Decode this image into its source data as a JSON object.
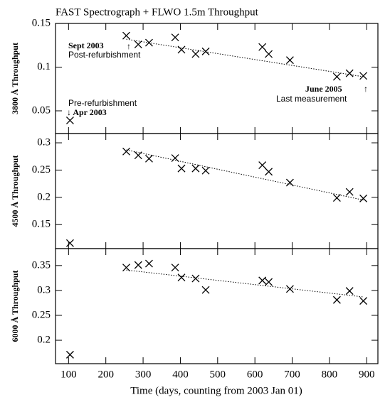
{
  "chart_data": [
    {
      "type": "scatter",
      "title": "FAST Spectrograph + FLWO 1.5m Throughput",
      "ylabel": "3800 Å Throughput",
      "color": "#000000",
      "x": [
        104,
        255,
        287,
        316,
        386,
        403,
        441,
        468,
        620,
        637,
        694,
        820,
        854,
        891
      ],
      "values": [
        0.039,
        0.136,
        0.126,
        0.128,
        0.134,
        0.12,
        0.115,
        0.118,
        0.123,
        0.115,
        0.108,
        0.089,
        0.093,
        0.09
      ],
      "trend": {
        "x": [
          255,
          891
        ],
        "values": [
          0.132,
          0.089
        ]
      },
      "annotations": [
        "Sept 2003",
        "↑",
        "Post-refurbishment",
        "Pre-refurbishment",
        "↓ Apr 2003",
        "June 2005",
        "↑",
        "Last measurement"
      ],
      "xlim": [
        65,
        930
      ],
      "ylim": [
        0.024,
        0.15
      ],
      "yticks": [
        0.05,
        0.1,
        0.15
      ]
    },
    {
      "type": "scatter",
      "ylabel": "4500 Å Throughput",
      "color": "#000000",
      "x": [
        104,
        255,
        287,
        316,
        386,
        403,
        441,
        468,
        620,
        637,
        694,
        820,
        854,
        891
      ],
      "values": [
        0.116,
        0.284,
        0.277,
        0.271,
        0.272,
        0.253,
        0.253,
        0.249,
        0.259,
        0.247,
        0.227,
        0.199,
        0.21,
        0.198
      ],
      "trend": {
        "x": [
          255,
          891
        ],
        "values": [
          0.287,
          0.195
        ]
      },
      "xlim": [
        65,
        930
      ],
      "ylim": [
        0.106,
        0.317
      ],
      "yticks": [
        0.15,
        0.2,
        0.25,
        0.3
      ]
    },
    {
      "type": "scatter",
      "ylabel": "6000 Å Throughput",
      "xlabel": "Time (days, counting from 2003 Jan 01)",
      "color": "#000000",
      "x": [
        104,
        255,
        287,
        316,
        386,
        403,
        441,
        468,
        620,
        637,
        694,
        820,
        854,
        891
      ],
      "values": [
        0.171,
        0.346,
        0.351,
        0.354,
        0.346,
        0.326,
        0.324,
        0.301,
        0.32,
        0.317,
        0.303,
        0.281,
        0.299,
        0.279
      ],
      "trend": {
        "x": [
          255,
          891
        ],
        "values": [
          0.341,
          0.287
        ]
      },
      "xlim": [
        65,
        930
      ],
      "ylim": [
        0.153,
        0.384
      ],
      "yticks": [
        0.2,
        0.25,
        0.3,
        0.35
      ],
      "xticks": [
        100,
        200,
        300,
        400,
        500,
        600,
        700,
        800,
        900
      ]
    }
  ]
}
